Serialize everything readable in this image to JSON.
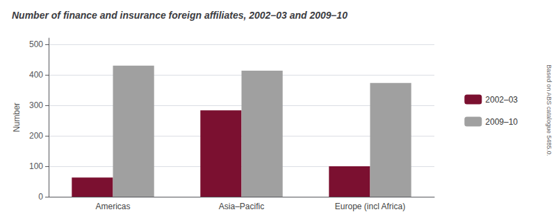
{
  "chart_data": {
    "type": "bar",
    "title": "Number of finance and insurance foreign affiliates, 2002–03 and 2009–10",
    "ylabel": "Number",
    "categories": [
      "Americas",
      "Asia–Pacific",
      "Europe (incl Africa)"
    ],
    "series": [
      {
        "name": "2002–03",
        "color": "#7B1030",
        "values": [
          63,
          283,
          100
        ]
      },
      {
        "name": "2009–10",
        "color": "#A0A0A0",
        "values": [
          430,
          413,
          373
        ]
      }
    ],
    "ylim": [
      0,
      520
    ],
    "yticks": [
      0,
      100,
      200,
      300,
      400,
      500
    ],
    "grid": true,
    "legend": "right",
    "annotation": "Based on ABS catalogue 5485.0."
  }
}
